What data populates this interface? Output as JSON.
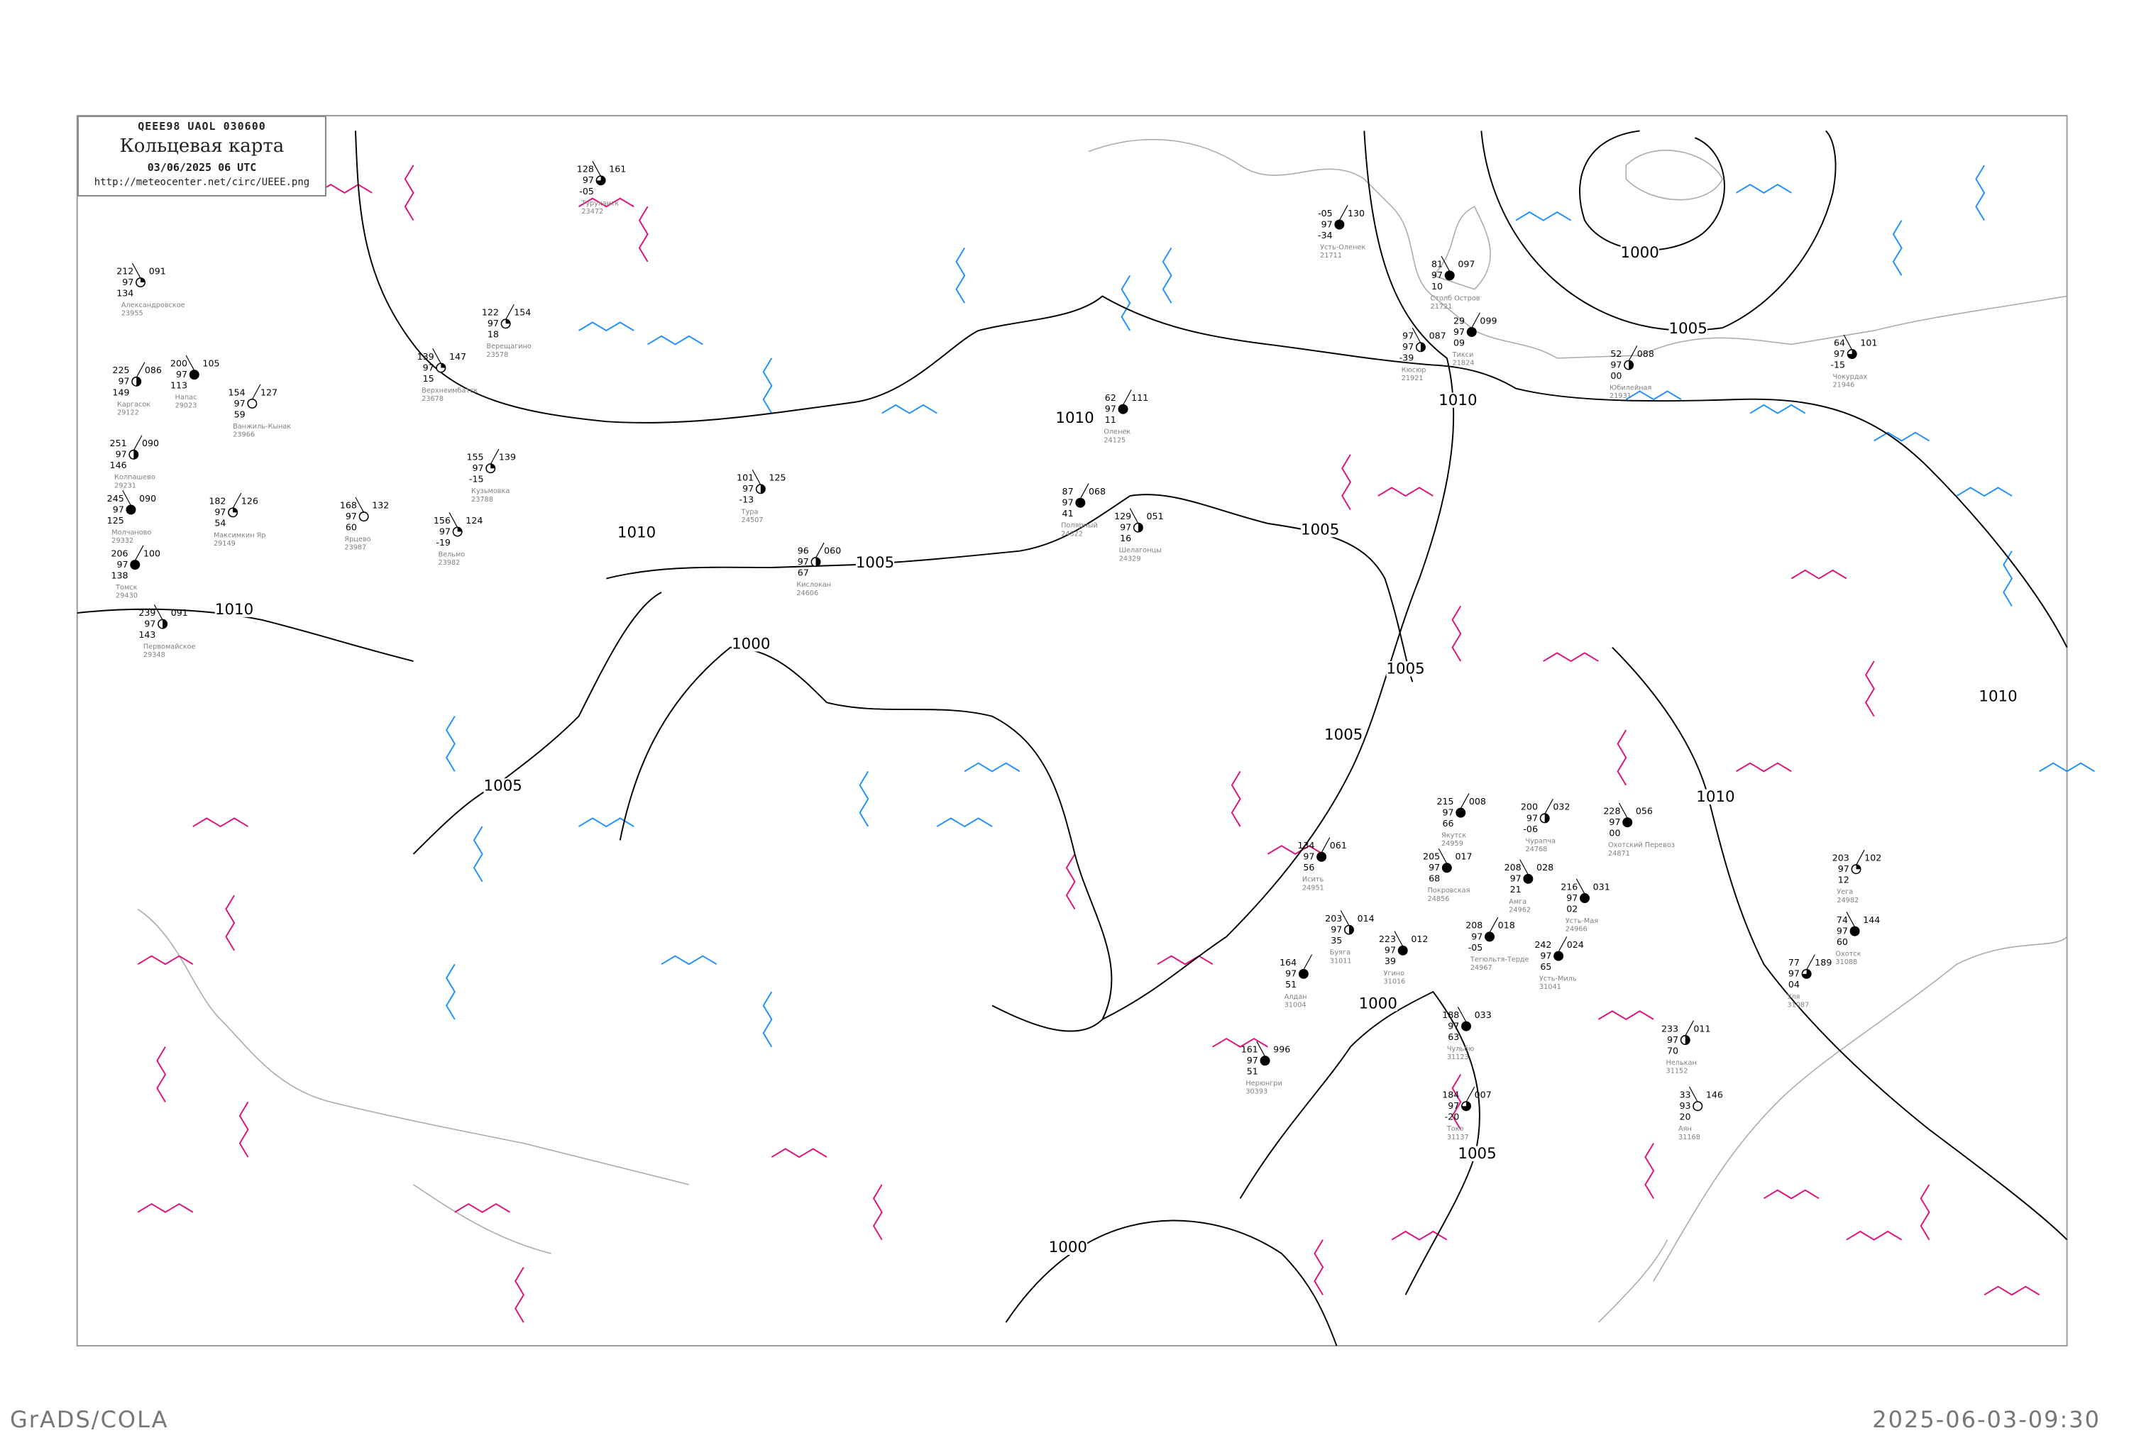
{
  "header": {
    "code": "QEEE98  UAOL  030600",
    "title": "Кольцевая карта",
    "date": "03/06/2025 06 UTC",
    "url": "http://meteocenter.net/circ/UEEE.png"
  },
  "footer": {
    "left": "GrADS/COLA",
    "right": "2025-06-03-09:30"
  },
  "colors": {
    "isobar": "#000000",
    "coast": "#aaaaaa",
    "cold_isotherm": "#1e90ff",
    "warm_isotherm": "#e0107a",
    "station_name": "#808080"
  },
  "isobar_labels": [
    "1000",
    "1005",
    "1010",
    "1010",
    "1005",
    "1000",
    "1010",
    "1005",
    "1005",
    "1010",
    "1010",
    "1005",
    "1000",
    "1005",
    "1010",
    "1000",
    "1005"
  ],
  "stations": [
    {
      "name": "Усть-Оленек",
      "id": "21711",
      "t": "-05",
      "p": "130",
      "vis": "97",
      "td": "-34",
      "cover": 1
    },
    {
      "name": "Столб Остров",
      "id": "21721",
      "t": "81",
      "p": "097",
      "vis": "97",
      "td": "10",
      "cover": 1
    },
    {
      "name": "Тикси",
      "id": "21824",
      "t": "29",
      "p": "099",
      "vis": "97",
      "td": "09",
      "cover": 1
    },
    {
      "name": "Кюсюр",
      "id": "21921",
      "t": "97",
      "p": "087",
      "vis": "97",
      "td": "-39",
      "cover": 0.5
    },
    {
      "name": "Юбилейная",
      "id": "21931",
      "t": "52",
      "p": "088",
      "vis": "97",
      "td": "00",
      "cover": 0.5
    },
    {
      "name": "Чокурдах",
      "id": "21946",
      "t": "64",
      "p": "101",
      "vis": "97",
      "td": "-15",
      "cover": 0.75
    },
    {
      "name": "Оленек",
      "id": "24125",
      "t": "62",
      "p": "111",
      "vis": "97",
      "td": "11",
      "cover": 1
    },
    {
      "name": "Тура",
      "id": "24507",
      "t": "101",
      "p": "125",
      "vis": "97",
      "td": "-13",
      "cover": 0.5
    },
    {
      "name": "Полярный",
      "id": "24322",
      "t": "87",
      "p": "068",
      "vis": "97",
      "td": "41",
      "cover": 1
    },
    {
      "name": "Шелагонцы",
      "id": "24329",
      "t": "129",
      "p": "051",
      "vis": "97",
      "td": "16",
      "cover": 0.5
    },
    {
      "name": "Кислокан",
      "id": "24606",
      "t": "96",
      "p": "060",
      "vis": "97",
      "td": "67",
      "cover": 0.5
    },
    {
      "name": "Александровское",
      "id": "23955",
      "t": "212",
      "p": "091",
      "vis": "97",
      "td": "134",
      "cover": 0.25
    },
    {
      "name": "Каргасок",
      "id": "29122",
      "t": "225",
      "p": "086",
      "vis": "97",
      "td": "149",
      "cover": 0.5
    },
    {
      "name": "Напас",
      "id": "29023",
      "t": "200",
      "p": "105",
      "vis": "97",
      "td": "113",
      "cover": 1
    },
    {
      "name": "Ванжиль-Кынак",
      "id": "23966",
      "t": "154",
      "p": "127",
      "vis": "97",
      "td": "59",
      "cover": 0
    },
    {
      "name": "Туруханск",
      "id": "23472",
      "t": "128",
      "p": "161",
      "vis": "97",
      "td": "-05",
      "cover": 0.75
    },
    {
      "name": "Верещагино",
      "id": "23578",
      "t": "122",
      "p": "154",
      "vis": "97",
      "td": "18",
      "cover": 0.25
    },
    {
      "name": "Верхнеимбатск",
      "id": "23678",
      "t": "139",
      "p": "147",
      "vis": "97",
      "td": "15",
      "cover": 0.25
    },
    {
      "name": "Колпашево",
      "id": "29231",
      "t": "251",
      "p": "090",
      "vis": "97",
      "td": "146",
      "cover": 0.5
    },
    {
      "name": "Молчаново",
      "id": "29332",
      "t": "245",
      "p": "090",
      "vis": "97",
      "td": "125",
      "cover": 1
    },
    {
      "name": "Максимкин Яр",
      "id": "29149",
      "t": "182",
      "p": "126",
      "vis": "97",
      "td": "54",
      "cover": 0.25
    },
    {
      "name": "Ярцево",
      "id": "23987",
      "t": "168",
      "p": "132",
      "vis": "97",
      "td": "60",
      "cover": 0
    },
    {
      "name": "Кузьмовка",
      "id": "23788",
      "t": "155",
      "p": "139",
      "vis": "97",
      "td": "-15",
      "cover": 0.25
    },
    {
      "name": "Вельмо",
      "id": "23982",
      "t": "156",
      "p": "124",
      "vis": "97",
      "td": "-19",
      "cover": 0.25
    },
    {
      "name": "Томск",
      "id": "29430",
      "t": "206",
      "p": "100",
      "vis": "97",
      "td": "138",
      "cover": 1
    },
    {
      "name": "Первомайское",
      "id": "29348",
      "t": "239",
      "p": "091",
      "vis": "97",
      "td": "143",
      "cover": 0.5
    },
    {
      "name": "Якутск",
      "id": "24959",
      "t": "215",
      "p": "008",
      "vis": "97",
      "td": "66",
      "cover": 1
    },
    {
      "name": "Покровская",
      "id": "24856",
      "t": "205",
      "p": "017",
      "vis": "97",
      "td": "68",
      "cover": 1
    },
    {
      "name": "Чурапча",
      "id": "24768",
      "t": "200",
      "p": "032",
      "vis": "97",
      "td": "-06",
      "cover": 0.5
    },
    {
      "name": "Охотский Перевоз",
      "id": "24871",
      "t": "228",
      "p": "056",
      "vis": "97",
      "td": "00",
      "cover": 1
    },
    {
      "name": "Исить",
      "id": "24951",
      "t": "134",
      "p": "061",
      "vis": "97",
      "td": "56",
      "cover": 1
    },
    {
      "name": "Амга",
      "id": "24962",
      "t": "208",
      "p": "028",
      "vis": "97",
      "td": "21",
      "cover": 1
    },
    {
      "name": "Тегюльтя-Терде",
      "id": "24967",
      "t": "208",
      "p": "018",
      "vis": "97",
      "td": "-05",
      "cover": 1
    },
    {
      "name": "Усть-Мая",
      "id": "24966",
      "t": "216",
      "p": "031",
      "vis": "97",
      "td": "02",
      "cover": 1
    },
    {
      "name": "Уега",
      "id": "24982",
      "t": "203",
      "p": "102",
      "vis": "97",
      "td": "12",
      "cover": 0.25
    },
    {
      "name": "Буяга",
      "id": "31011",
      "t": "203",
      "p": "014",
      "vis": "97",
      "td": "35",
      "cover": 0.5
    },
    {
      "name": "Усть-Миль",
      "id": "31041",
      "t": "242",
      "p": "024",
      "vis": "97",
      "td": "65",
      "cover": 1
    },
    {
      "name": "Охотск",
      "id": "31088",
      "t": "74",
      "p": "144",
      "vis": "97",
      "td": "60",
      "cover": 1
    },
    {
      "name": "Алдан",
      "id": "31004",
      "t": "164",
      "p": "",
      "vis": "97",
      "td": "51",
      "cover": 1
    },
    {
      "name": "Угино",
      "id": "31016",
      "t": "223",
      "p": "012",
      "vis": "97",
      "td": "39",
      "cover": 1
    },
    {
      "name": "Уля",
      "id": "31087",
      "t": "77",
      "p": "189",
      "vis": "97",
      "td": "04",
      "cover": 0.75
    },
    {
      "name": "Чульбю",
      "id": "31123",
      "t": "188",
      "p": "033",
      "vis": "97",
      "td": "63",
      "cover": 1
    },
    {
      "name": "Нелькан",
      "id": "31152",
      "t": "233",
      "p": "011",
      "vis": "97",
      "td": "70",
      "cover": 0.5
    },
    {
      "name": "Нерюнгри",
      "id": "30393",
      "t": "161",
      "p": "996",
      "vis": "97",
      "td": "51",
      "cover": 1
    },
    {
      "name": "Токо",
      "id": "31137",
      "t": "184",
      "p": "007",
      "vis": "97",
      "td": "-20",
      "cover": 0.75
    },
    {
      "name": "Аян",
      "id": "31168",
      "t": "33",
      "p": "146",
      "vis": "93",
      "td": "20",
      "cover": 0
    }
  ]
}
